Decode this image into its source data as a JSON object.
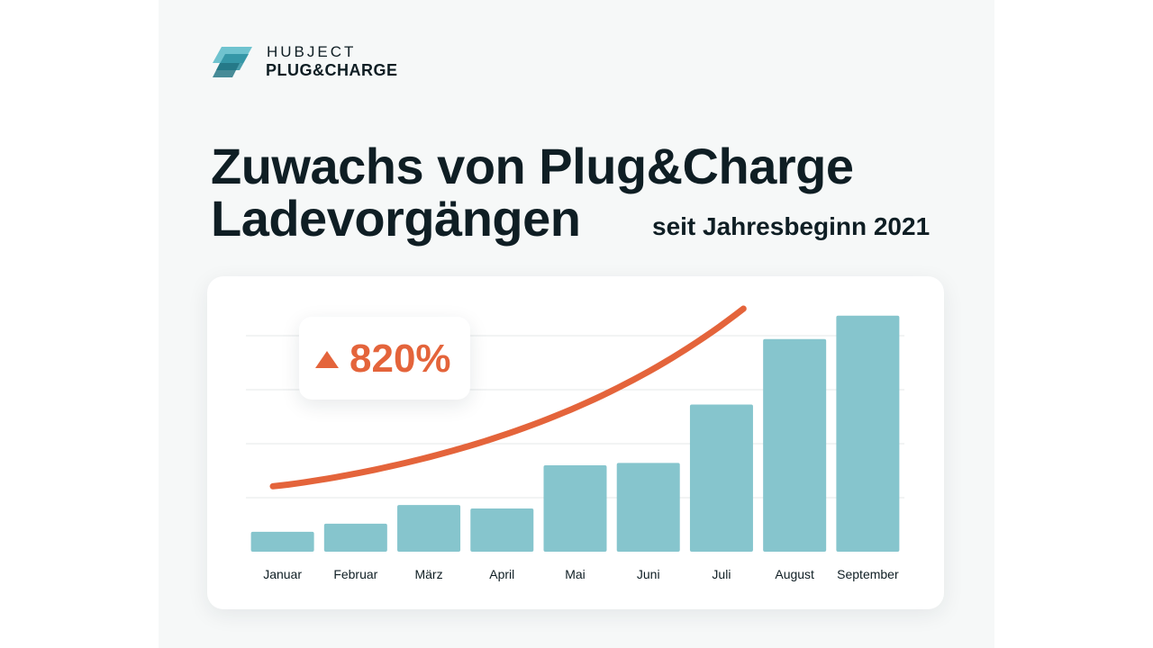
{
  "logo": {
    "brand": "HUBJECT",
    "product": "PLUG&CHARGE",
    "colors": [
      "#2b8fa0",
      "#6fc3cf",
      "#1b6f7e"
    ]
  },
  "header": {
    "title_line1": "Zuwachs von Plug&Charge",
    "title_line2": "Ladevorgängen",
    "subtitle": "seit Jahresbeginn 2021"
  },
  "badge": {
    "icon": "triangle-up-icon",
    "value": "820%"
  },
  "colors": {
    "bar": "#86c5cd",
    "trend": "#e4643b",
    "text": "#0f1e24",
    "grid": "#e4e8e9"
  },
  "chart_data": {
    "type": "bar",
    "categories": [
      "Januar",
      "Februar",
      "März",
      "April",
      "Mai",
      "Juni",
      "Juli",
      "August",
      "September"
    ],
    "values": [
      8.5,
      12,
      20,
      18.5,
      37,
      38,
      63,
      91,
      101
    ],
    "ylim": [
      0,
      104
    ],
    "grid": true,
    "trend_line": {
      "type": "exponential",
      "start": 28,
      "end": 104
    },
    "title": "",
    "xlabel": "",
    "ylabel": ""
  }
}
